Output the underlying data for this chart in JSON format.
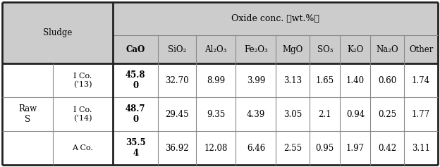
{
  "title": "Oxide conc. 【wt.%】",
  "sludge_label": "Sludge",
  "row_group_label": "Raw\nS",
  "col_headers_display": [
    "CaO",
    "SiO₂",
    "Al₂O₃",
    "Fe₂O₃",
    "MgO",
    "SO₃",
    "K₂O",
    "Na₂O",
    "Other"
  ],
  "row_labels": [
    "I Co.\n(’13)",
    "I Co.\n(’14)",
    "A Co."
  ],
  "data": [
    [
      "45.8\n0",
      "32.70",
      "8.99",
      "3.99",
      "3.13",
      "1.65",
      "1.40",
      "0.60",
      "1.74"
    ],
    [
      "48.7\n0",
      "29.45",
      "9.35",
      "4.39",
      "3.05",
      "2.1",
      "0.94",
      "0.25",
      "1.77"
    ],
    [
      "35.5\n4",
      "36.92",
      "12.08",
      "6.46",
      "2.55",
      "0.95",
      "1.97",
      "0.42",
      "3.11"
    ]
  ],
  "header_bg": "#cccccc",
  "data_bg": "#ffffff",
  "border_color_thick": "#222222",
  "border_color_thin": "#888888",
  "fig_width": 6.24,
  "fig_height": 2.37,
  "dpi": 100
}
